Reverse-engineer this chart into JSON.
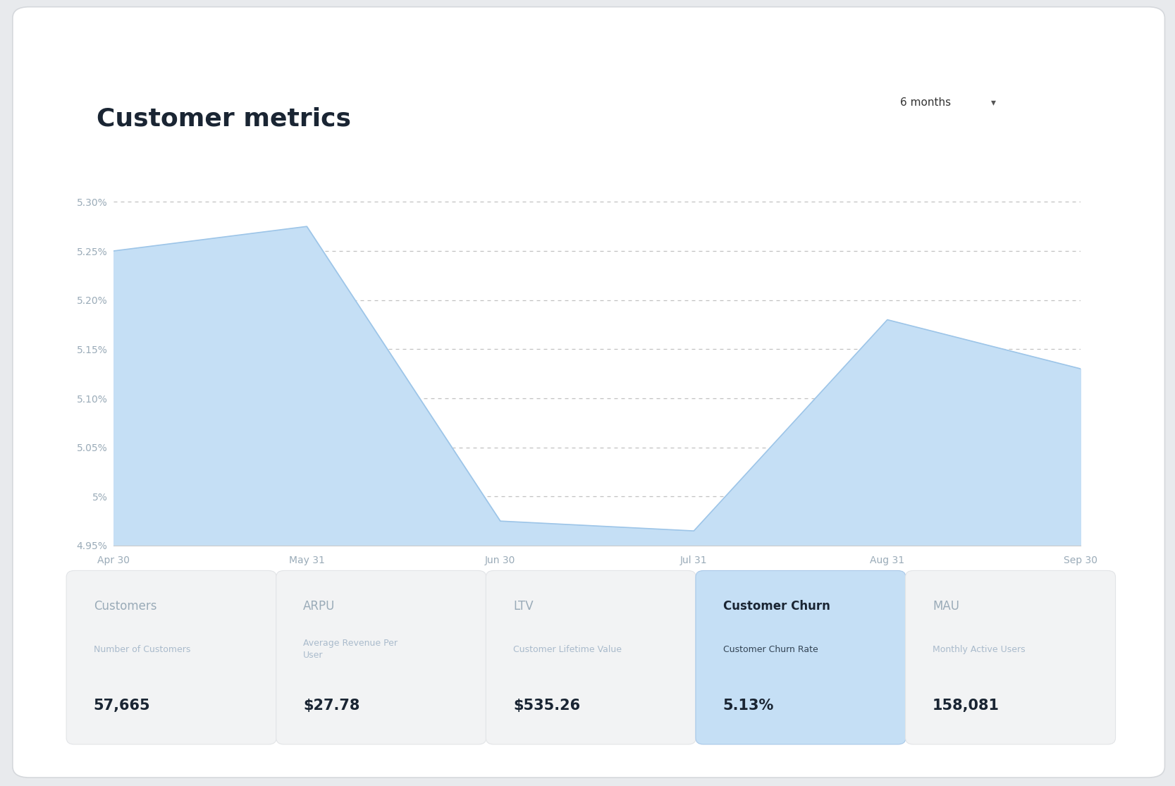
{
  "title": "Customer metrics",
  "dropdown_label": "6 months",
  "x_labels": [
    "Apr 30",
    "May 31",
    "Jun 30",
    "Jul 31",
    "Aug 31",
    "Sep 30"
  ],
  "y_values": [
    5.25,
    5.275,
    4.975,
    4.965,
    5.18,
    5.13
  ],
  "y_min": 4.95,
  "y_max": 5.35,
  "y_ticks": [
    4.95,
    5.0,
    5.05,
    5.1,
    5.15,
    5.2,
    5.25,
    5.3
  ],
  "fill_color": "#c5dff5",
  "line_color": "#9dc5e8",
  "bg_color": "#ffffff",
  "outer_bg": "#e8eaed",
  "grid_color": "#bbbbbb",
  "title_color": "#1a2533",
  "title_fontsize": 26,
  "metrics": [
    {
      "label": "Customers",
      "sublabel": "Number of Customers",
      "value": "57,665",
      "active": false
    },
    {
      "label": "ARPU",
      "sublabel": "Average Revenue Per\nUser",
      "value": "$27.78",
      "active": false
    },
    {
      "label": "LTV",
      "sublabel": "Customer Lifetime Value",
      "value": "$535.26",
      "active": false
    },
    {
      "label": "Customer Churn",
      "sublabel": "Customer Churn Rate",
      "value": "5.13%",
      "active": true
    },
    {
      "label": "MAU",
      "sublabel": "Monthly Active Users",
      "value": "158,081",
      "active": false
    }
  ],
  "card_active_bg": "#c5dff5",
  "card_inactive_bg": "#f2f3f4",
  "card_label_inactive_color": "#9aabb8",
  "card_label_active_color": "#1a2533",
  "card_sublabel_inactive_color": "#aabbcc",
  "card_sublabel_active_color": "#334455",
  "card_value_color": "#1a2533",
  "card_border_inactive": "#e2e4e7",
  "card_border_active": "#a8c8e8"
}
